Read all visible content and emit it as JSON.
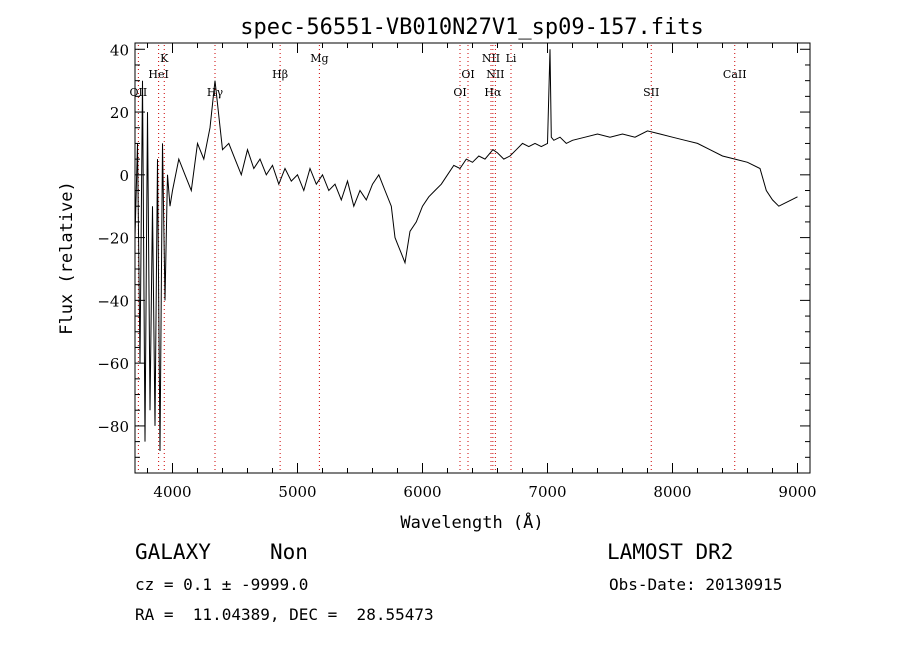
{
  "chart_data": {
    "type": "line",
    "title": "spec-56551-VB010N27V1_sp09-157.fits",
    "xlabel": "Wavelength (Å)",
    "ylabel": "Flux (relative)",
    "xlim": [
      3700,
      9100
    ],
    "ylim": [
      -95,
      42
    ],
    "x_ticks": [
      4000,
      5000,
      6000,
      7000,
      8000,
      9000
    ],
    "y_ticks": [
      -80,
      -60,
      -40,
      -20,
      0,
      20,
      40
    ],
    "grid": false,
    "line_color": "#000000",
    "line_marker_color": "#cc0000",
    "series": [
      {
        "x": [
          3700,
          3720,
          3740,
          3760,
          3780,
          3800,
          3820,
          3840,
          3860,
          3880,
          3900,
          3920,
          3940,
          3960,
          3980,
          4000,
          4050,
          4100,
          4150,
          4200,
          4250,
          4300,
          4340,
          4400,
          4450,
          4500,
          4550,
          4600,
          4650,
          4700,
          4750,
          4800,
          4850,
          4900,
          4950,
          5000,
          5050,
          5100,
          5150,
          5200,
          5250,
          5300,
          5350,
          5400,
          5450,
          5500,
          5550,
          5600,
          5650,
          5700,
          5750,
          5780,
          5800,
          5830,
          5860,
          5900,
          5950,
          6000,
          6050,
          6100,
          6150,
          6200,
          6250,
          6300,
          6350,
          6400,
          6450,
          6500,
          6563,
          6600,
          6650,
          6700,
          6750,
          6800,
          6850,
          6900,
          6950,
          7000,
          7020,
          7030,
          7050,
          7100,
          7150,
          7200,
          7300,
          7400,
          7500,
          7600,
          7700,
          7800,
          7900,
          8000,
          8100,
          8200,
          8300,
          8400,
          8500,
          8600,
          8700,
          8750,
          8800,
          8850,
          8900,
          8950,
          9000
        ],
        "y": [
          -20,
          10,
          -60,
          30,
          -85,
          20,
          -75,
          -10,
          -80,
          5,
          -88,
          10,
          -40,
          0,
          -10,
          -5,
          5,
          0,
          -5,
          10,
          5,
          15,
          30,
          8,
          10,
          5,
          0,
          8,
          2,
          5,
          0,
          3,
          -3,
          2,
          -2,
          0,
          -5,
          2,
          -3,
          0,
          -5,
          -3,
          -8,
          -2,
          -10,
          -5,
          -8,
          -3,
          0,
          -5,
          -10,
          -20,
          -22,
          -25,
          -28,
          -18,
          -15,
          -10,
          -7,
          -5,
          -3,
          0,
          3,
          2,
          5,
          4,
          6,
          5,
          8,
          7,
          5,
          6,
          8,
          10,
          9,
          10,
          9,
          10,
          40,
          12,
          11,
          12,
          10,
          11,
          12,
          13,
          12,
          13,
          12,
          14,
          13,
          12,
          11,
          10,
          8,
          6,
          5,
          4,
          2,
          -5,
          -8,
          -10,
          -9,
          -8,
          -7
        ]
      }
    ],
    "lines": [
      {
        "label": "OII",
        "x": 3727,
        "row": 3
      },
      {
        "label": "HeI",
        "x": 3889,
        "row": 2
      },
      {
        "label": "K",
        "x": 3934,
        "row": 1
      },
      {
        "label": "Hγ",
        "x": 4340,
        "row": 3
      },
      {
        "label": "Hβ",
        "x": 4861,
        "row": 2
      },
      {
        "label": "Mg",
        "x": 5175,
        "row": 1
      },
      {
        "label": "OI",
        "x": 6300,
        "row": 3
      },
      {
        "label": "OI",
        "x": 6364,
        "row": 2
      },
      {
        "label": "NII",
        "x": 6548,
        "row": 1
      },
      {
        "label": "NII",
        "x": 6583,
        "row": 2
      },
      {
        "label": "Hα",
        "x": 6563,
        "row": 3
      },
      {
        "label": "Li",
        "x": 6708,
        "row": 1
      },
      {
        "label": "SII",
        "x": 7830,
        "row": 3
      },
      {
        "label": "CaII",
        "x": 8498,
        "row": 2
      }
    ]
  },
  "info": {
    "obj_class": "GALAXY",
    "obj_subclass": "Non",
    "survey": "LAMOST DR2",
    "cz": "cz = 0.1 ± -9999.0",
    "obs_date": "Obs-Date: 20130915",
    "radec": "RA =  11.04389, DEC =  28.55473"
  }
}
